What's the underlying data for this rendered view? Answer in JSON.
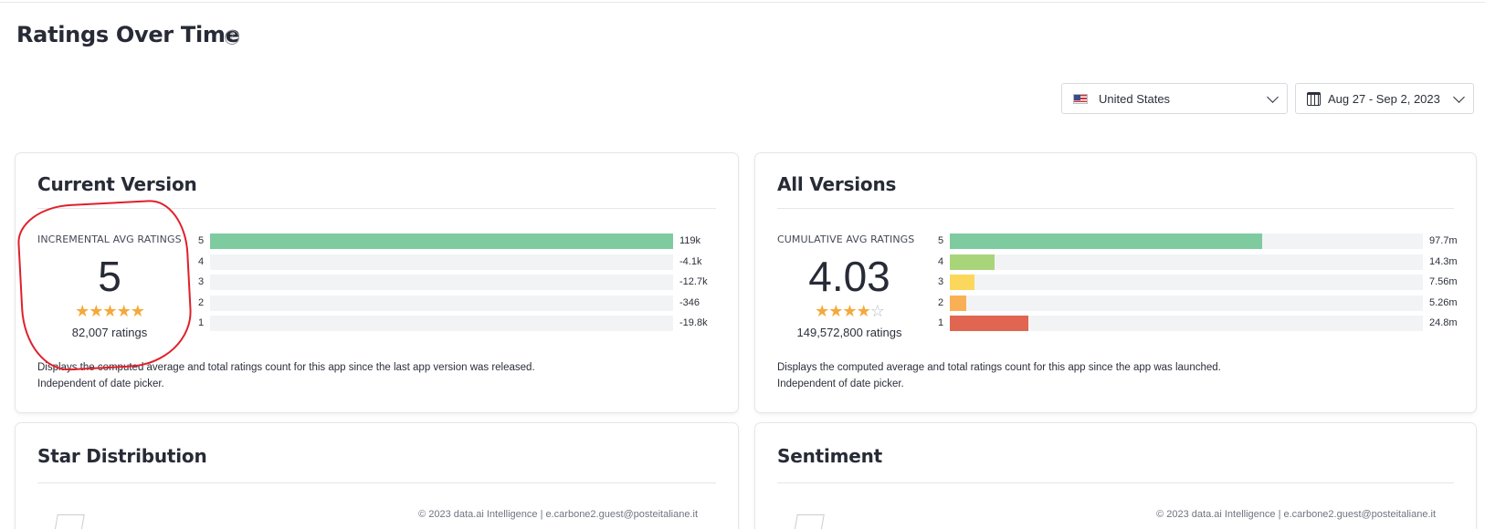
{
  "page": {
    "title": "Ratings Over Time"
  },
  "filters": {
    "country": "United States",
    "date_range": "Aug 27 - Sep 2, 2023"
  },
  "current_version": {
    "title": "Current Version",
    "avg_label": "INCREMENTAL AVG RATINGS",
    "avg_value": "5",
    "stars_filled": 5,
    "ratings_count": "82,007 ratings",
    "bars": [
      {
        "star": "5",
        "value": "119k",
        "fraction": 1.0,
        "color": "#7fcba0"
      },
      {
        "star": "4",
        "value": "-4.1k",
        "fraction": 0.0,
        "color": "#a9d57a"
      },
      {
        "star": "3",
        "value": "-12.7k",
        "fraction": 0.0,
        "color": "#fbd75b"
      },
      {
        "star": "2",
        "value": "-346",
        "fraction": 0.0,
        "color": "#f9b054"
      },
      {
        "star": "1",
        "value": "-19.8k",
        "fraction": 0.0,
        "color": "#e06651"
      }
    ],
    "description_line1": "Displays the computed average and total ratings count for this app since the last app version was released.",
    "description_line2": "Independent of date picker."
  },
  "all_versions": {
    "title": "All Versions",
    "avg_label": "CUMULATIVE AVG RATINGS",
    "avg_value": "4.03",
    "stars_filled": 4,
    "ratings_count": "149,572,800 ratings",
    "bars": [
      {
        "star": "5",
        "value": "97.7m",
        "fraction": 0.66,
        "color": "#7fcba0"
      },
      {
        "star": "4",
        "value": "14.3m",
        "fraction": 0.095,
        "color": "#a9d57a"
      },
      {
        "star": "3",
        "value": "7.56m",
        "fraction": 0.052,
        "color": "#fbd75b"
      },
      {
        "star": "2",
        "value": "5.26m",
        "fraction": 0.035,
        "color": "#f9b054"
      },
      {
        "star": "1",
        "value": "24.8m",
        "fraction": 0.166,
        "color": "#e06651"
      }
    ],
    "description_line1": "Displays the computed average and total ratings count for this app since the app was launched.",
    "description_line2": "Independent of date picker."
  },
  "star_distribution": {
    "title": "Star Distribution",
    "footer": "© 2023 data.ai Intelligence | e.carbone2.guest@posteitaliane.it"
  },
  "sentiment": {
    "title": "Sentiment",
    "footer": "© 2023 data.ai Intelligence | e.carbone2.guest@posteitaliane.it"
  }
}
